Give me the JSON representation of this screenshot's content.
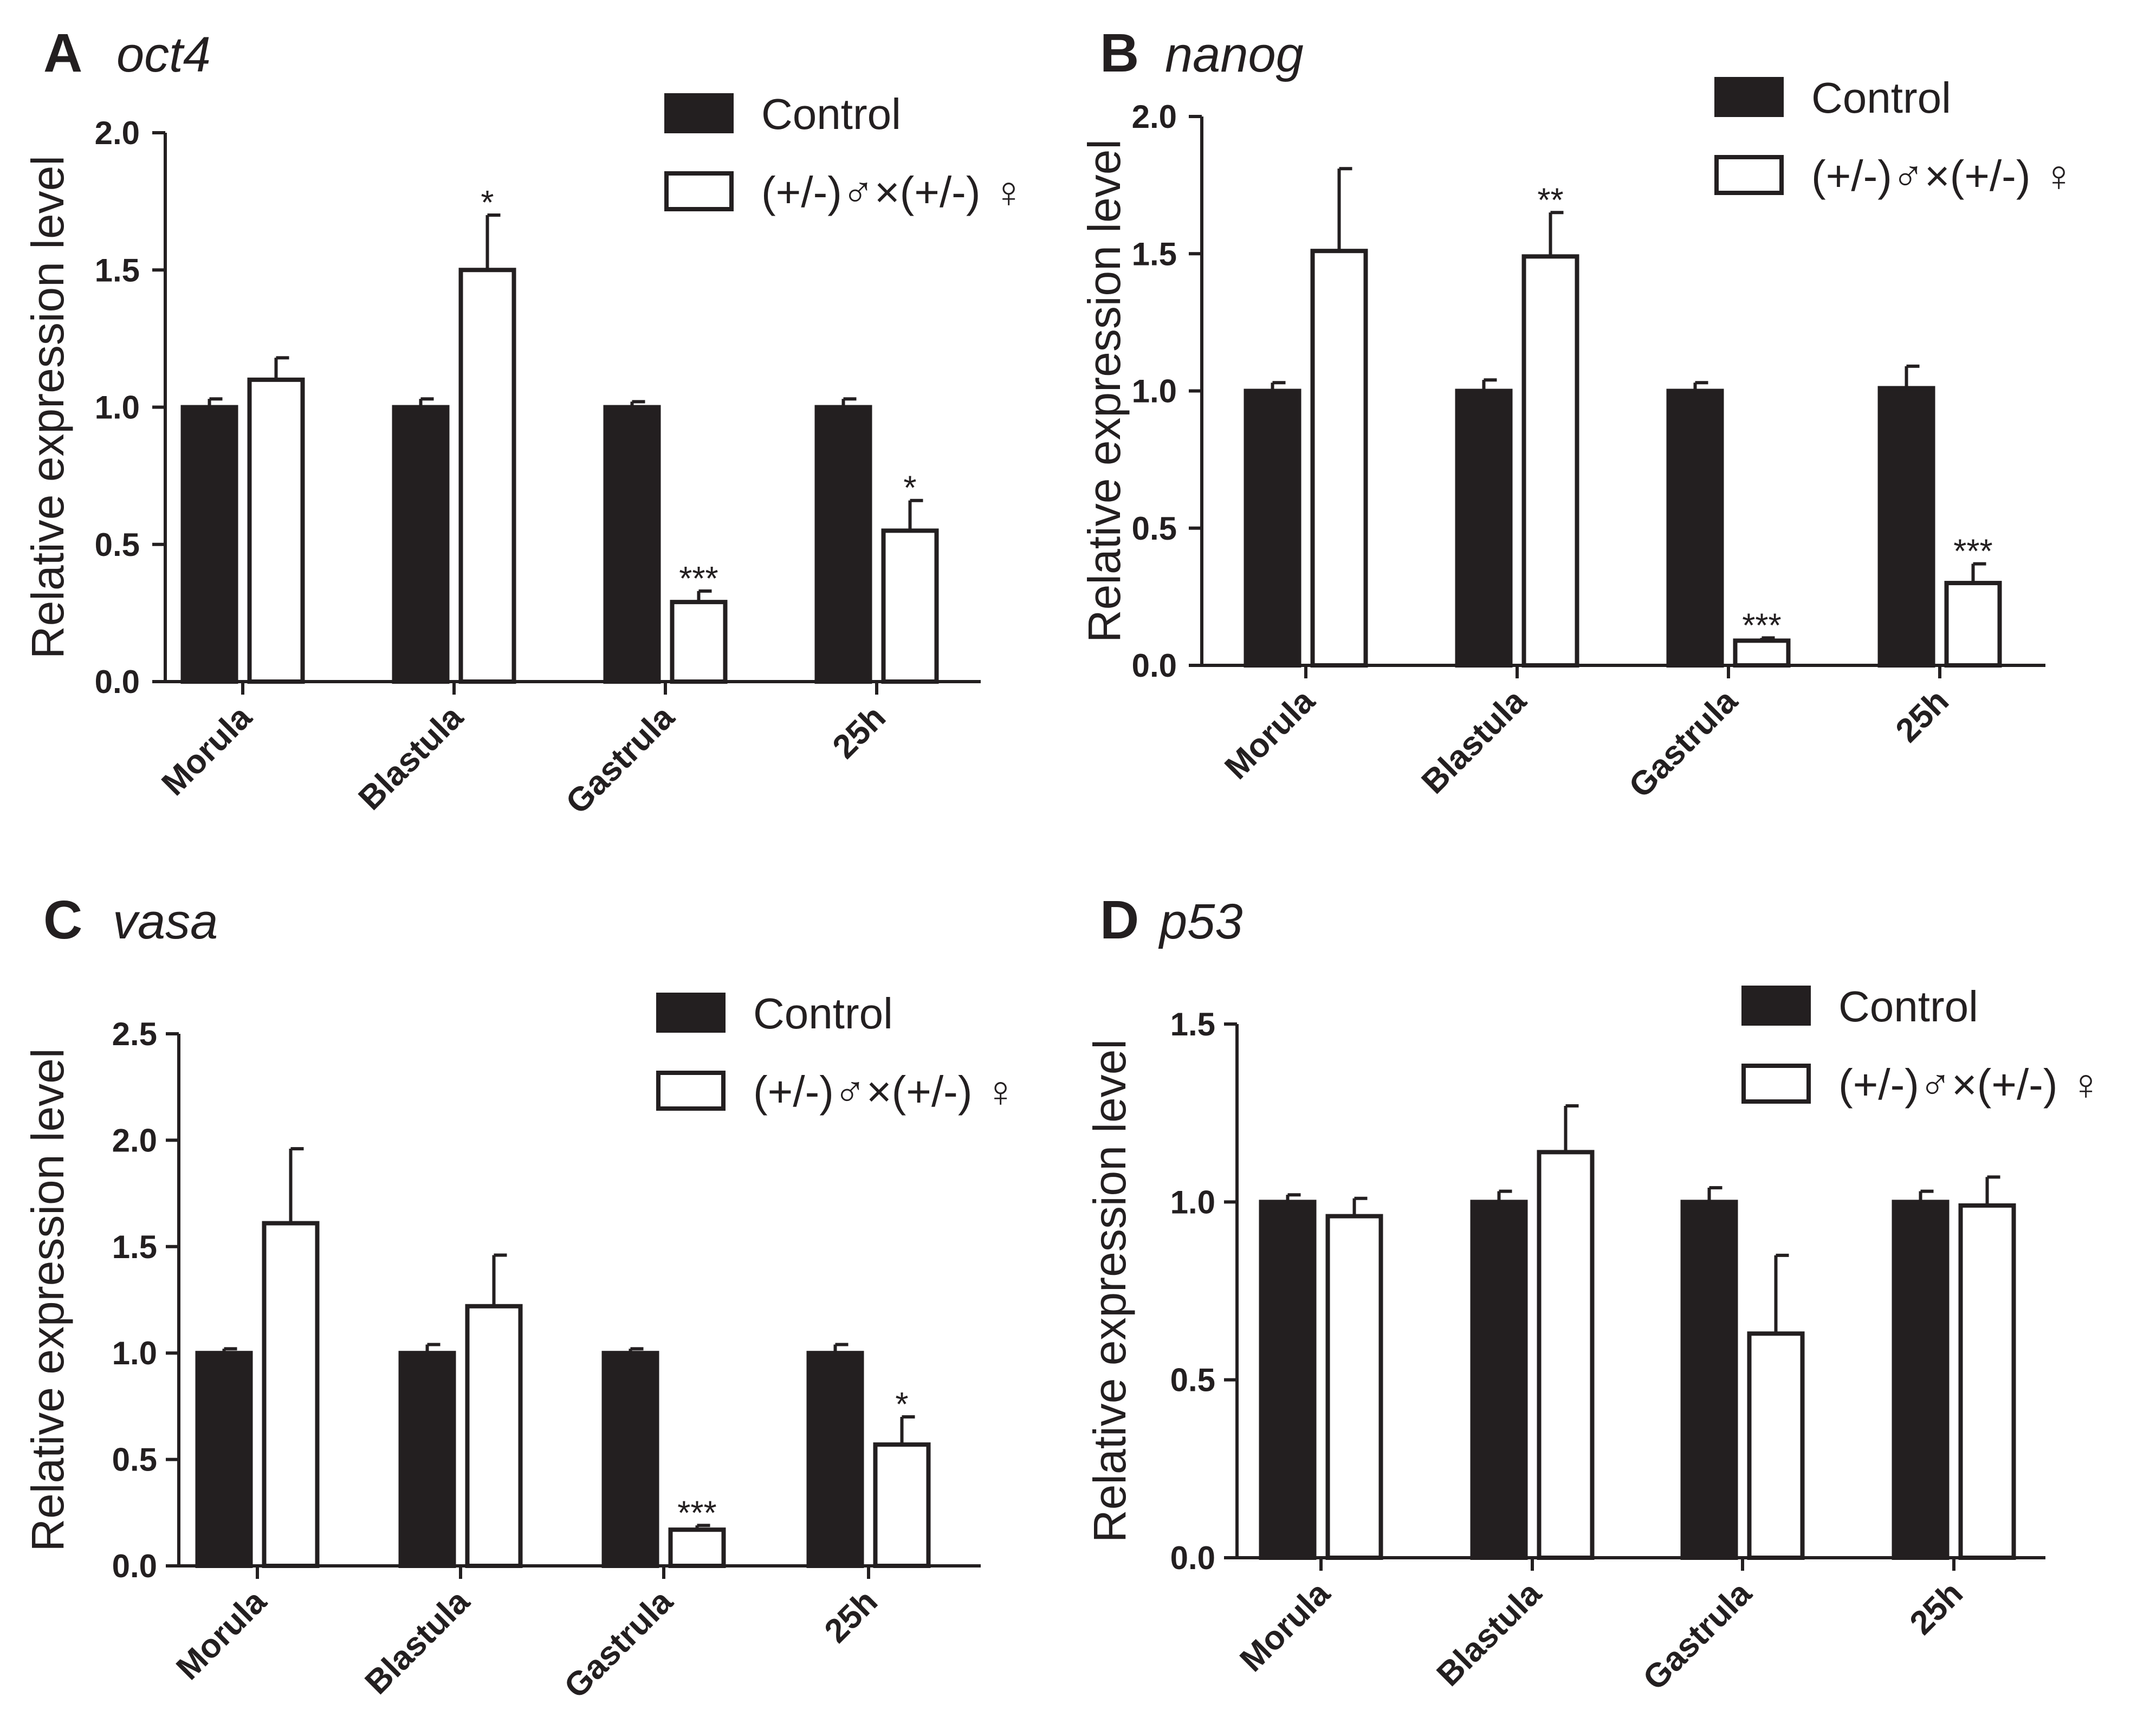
{
  "colors": {
    "control": "#231f20",
    "mutant": "#ffffff",
    "axis": "#231f20"
  },
  "legend": {
    "control_label": "Control",
    "mutant_label": "(+/-)♂×(+/-) ♀"
  },
  "chart_data": [
    {
      "type": "bar",
      "panel": "A",
      "title": "oct4",
      "xlabel": "",
      "ylabel": "Relative expression level",
      "ylim": [
        0,
        2.0
      ],
      "yticks": [
        "0.0",
        "0.5",
        "1.0",
        "1.5",
        "2.0"
      ],
      "categories": [
        "Morula",
        "Blastula",
        "Gastrula",
        "25h"
      ],
      "series": [
        {
          "name": "Control",
          "values": [
            1.0,
            1.0,
            1.0,
            1.0
          ],
          "errors": [
            0.03,
            0.03,
            0.02,
            0.03
          ]
        },
        {
          "name": "(+/-)♂×(+/-) ♀",
          "values": [
            1.1,
            1.5,
            0.29,
            0.55
          ],
          "errors": [
            0.08,
            0.2,
            0.04,
            0.11
          ]
        }
      ],
      "annotations": [
        {
          "category": "Blastula",
          "text": "*"
        },
        {
          "category": "Gastrula",
          "text": "***"
        },
        {
          "category": "25h",
          "text": "*"
        }
      ]
    },
    {
      "type": "bar",
      "panel": "B",
      "title": "nanog",
      "xlabel": "",
      "ylabel": "Relative expression level",
      "ylim": [
        0,
        2.0
      ],
      "yticks": [
        "0.0",
        "0.5",
        "1.0",
        "1.5",
        "2.0"
      ],
      "categories": [
        "Morula",
        "Blastula",
        "Gastrula",
        "25h"
      ],
      "series": [
        {
          "name": "Control",
          "values": [
            1.0,
            1.0,
            1.0,
            1.01
          ],
          "errors": [
            0.03,
            0.04,
            0.03,
            0.08
          ]
        },
        {
          "name": "(+/-)♂×(+/-) ♀",
          "values": [
            1.51,
            1.49,
            0.09,
            0.3
          ],
          "errors": [
            0.3,
            0.16,
            0.01,
            0.07
          ]
        }
      ],
      "annotations": [
        {
          "category": "Blastula",
          "text": "**"
        },
        {
          "category": "Gastrula",
          "text": "***"
        },
        {
          "category": "25h",
          "text": "***"
        }
      ]
    },
    {
      "type": "bar",
      "panel": "C",
      "title": "vasa",
      "xlabel": "",
      "ylabel": "Relative expression level",
      "ylim": [
        0,
        2.5
      ],
      "yticks": [
        "0.0",
        "0.5",
        "1.0",
        "1.5",
        "2.0",
        "2.5"
      ],
      "categories": [
        "Morula",
        "Blastula",
        "Gastrula",
        "25h"
      ],
      "series": [
        {
          "name": "Control",
          "values": [
            1.0,
            1.0,
            1.0,
            1.0
          ],
          "errors": [
            0.02,
            0.04,
            0.02,
            0.04
          ]
        },
        {
          "name": "(+/-)♂×(+/-) ♀",
          "values": [
            1.61,
            1.22,
            0.17,
            0.57
          ],
          "errors": [
            0.35,
            0.24,
            0.02,
            0.13
          ]
        }
      ],
      "annotations": [
        {
          "category": "Gastrula",
          "text": "***"
        },
        {
          "category": "25h",
          "text": "*"
        }
      ]
    },
    {
      "type": "bar",
      "panel": "D",
      "title": "p53",
      "xlabel": "",
      "ylabel": "Relative expression level",
      "ylim": [
        0,
        1.5
      ],
      "yticks": [
        "0.0",
        "0.5",
        "1.0",
        "1.5"
      ],
      "categories": [
        "Morula",
        "Blastula",
        "Gastrula",
        "25h"
      ],
      "series": [
        {
          "name": "Control",
          "values": [
            1.0,
            1.0,
            1.0,
            1.0
          ],
          "errors": [
            0.02,
            0.03,
            0.04,
            0.03
          ]
        },
        {
          "name": "(+/-)♂×(+/-) ♀",
          "values": [
            0.96,
            1.14,
            0.63,
            0.99
          ],
          "errors": [
            0.05,
            0.13,
            0.22,
            0.08
          ]
        }
      ],
      "annotations": []
    }
  ]
}
